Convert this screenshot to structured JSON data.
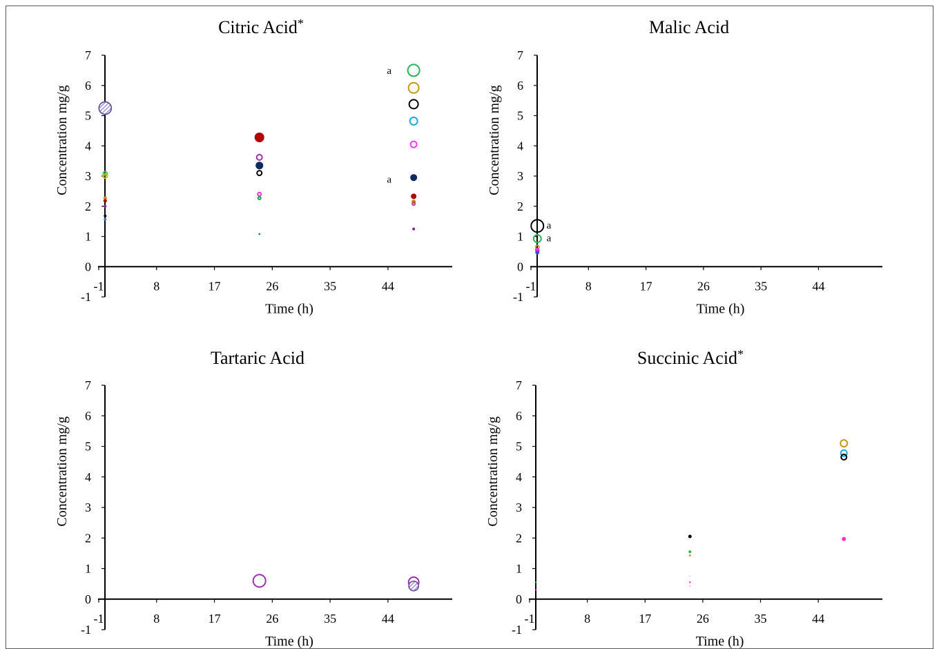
{
  "chart_data": [
    {
      "type": "scatter",
      "title": "Citric Acid",
      "title_mark": "*",
      "xlabel": "Time (h)",
      "ylabel": "Concentration mg/g",
      "xlim": [
        -1,
        54
      ],
      "ylim": [
        -1,
        7
      ],
      "x_ticks": [
        "-1",
        "8",
        "17",
        "26",
        "35",
        "44"
      ],
      "y_ticks": [
        "-1",
        "0",
        "1",
        "2",
        "3",
        "4",
        "5",
        "6",
        "7"
      ],
      "points": [
        {
          "x": 0,
          "y": 5.25,
          "size": 18,
          "color": "#8e7cc3",
          "style": "hatched"
        },
        {
          "x": 0,
          "y": 3.08,
          "size": 8,
          "color": "#2ecc71",
          "style": "ring"
        },
        {
          "x": 0,
          "y": 3.0,
          "size": 8,
          "color": "#d4b800",
          "style": "ring"
        },
        {
          "x": 0,
          "y": 2.27,
          "size": 5,
          "color": "#c8861a",
          "style": "filled"
        },
        {
          "x": 0,
          "y": 2.18,
          "size": 5,
          "color": "#a00000",
          "style": "filled"
        },
        {
          "x": 0,
          "y": 2.0,
          "size": 4,
          "color": "#7d2a8c",
          "style": "filled"
        },
        {
          "x": 0,
          "y": 1.68,
          "size": 4,
          "color": "#000000",
          "style": "filled"
        },
        {
          "x": 0,
          "y": 1.57,
          "size": 4,
          "color": "#3a7bd5",
          "style": "filled"
        },
        {
          "x": 24,
          "y": 4.28,
          "size": 14,
          "color": "#b00000",
          "style": "filled"
        },
        {
          "x": 24,
          "y": 3.62,
          "size": 10,
          "color": "#9b30b0",
          "style": "ring"
        },
        {
          "x": 24,
          "y": 3.35,
          "size": 11,
          "color": "#0d2a5c",
          "style": "filled"
        },
        {
          "x": 24,
          "y": 3.1,
          "size": 9,
          "color": "#000000",
          "style": "ring"
        },
        {
          "x": 24,
          "y": 2.4,
          "size": 7,
          "color": "#ff33cc",
          "style": "ring"
        },
        {
          "x": 24,
          "y": 2.27,
          "size": 6,
          "color": "#17a050",
          "style": "ring"
        },
        {
          "x": 24,
          "y": 1.08,
          "size": 3,
          "color": "#1a8fa0",
          "style": "filled"
        },
        {
          "x": 48,
          "y": 6.5,
          "size": 19,
          "color": "#22b55a",
          "style": "ring"
        },
        {
          "x": 48,
          "y": 5.92,
          "size": 17,
          "color": "#c8961a",
          "style": "ring"
        },
        {
          "x": 48,
          "y": 5.38,
          "size": 15,
          "color": "#000000",
          "style": "ring"
        },
        {
          "x": 48,
          "y": 4.82,
          "size": 13,
          "color": "#22a8e0",
          "style": "ring"
        },
        {
          "x": 48,
          "y": 4.05,
          "size": 11,
          "color": "#ff33ff",
          "style": "ring"
        },
        {
          "x": 48,
          "y": 2.95,
          "size": 10,
          "color": "#0d2a5c",
          "style": "filled"
        },
        {
          "x": 48,
          "y": 2.33,
          "size": 8,
          "color": "#b00000",
          "style": "filled"
        },
        {
          "x": 48,
          "y": 2.15,
          "size": 6,
          "color": "#b8860b",
          "style": "filled"
        },
        {
          "x": 48,
          "y": 2.08,
          "size": 6,
          "color": "#c04080",
          "style": "ring"
        },
        {
          "x": 48,
          "y": 1.25,
          "size": 4,
          "color": "#7d2a8c",
          "style": "filled"
        }
      ],
      "annotations": [
        {
          "text": "a",
          "x": 44.2,
          "y": 6.5
        },
        {
          "text": "a",
          "x": 44.2,
          "y": 2.9
        }
      ]
    },
    {
      "type": "scatter",
      "title": "Malic Acid",
      "title_mark": "",
      "xlabel": "Time (h)",
      "ylabel": "Concentration mg/g",
      "xlim": [
        -1,
        54
      ],
      "ylim": [
        -1,
        7
      ],
      "x_ticks": [
        "-1",
        "8",
        "17",
        "26",
        "35",
        "44"
      ],
      "y_ticks": [
        "-1",
        "0",
        "1",
        "2",
        "3",
        "4",
        "5",
        "6",
        "7"
      ],
      "points": [
        {
          "x": 0,
          "y": 1.35,
          "size": 20,
          "color": "#000000",
          "style": "ring"
        },
        {
          "x": 0,
          "y": 0.93,
          "size": 13,
          "color": "#22b55a",
          "style": "ring"
        },
        {
          "x": 0,
          "y": 0.65,
          "size": 7,
          "color": "#c8961a",
          "style": "ring"
        },
        {
          "x": 0,
          "y": 0.55,
          "size": 7,
          "color": "#ff33cc",
          "style": "filled"
        },
        {
          "x": 0,
          "y": 0.47,
          "size": 6,
          "color": "#3a4fd5",
          "style": "filled"
        }
      ],
      "annotations": [
        {
          "text": "a",
          "x": 1.8,
          "y": 1.38
        },
        {
          "text": "a",
          "x": 1.8,
          "y": 0.96
        }
      ]
    },
    {
      "type": "scatter",
      "title": "Tartaric Acid",
      "title_mark": "",
      "xlabel": "Time (h)",
      "ylabel": "Concentration mg/g",
      "xlim": [
        -1,
        54
      ],
      "ylim": [
        -1,
        7
      ],
      "x_ticks": [
        "-1",
        "8",
        "17",
        "26",
        "35",
        "44"
      ],
      "y_ticks": [
        "-1",
        "0",
        "1",
        "2",
        "3",
        "4",
        "5",
        "6",
        "7"
      ],
      "points": [
        {
          "x": 24,
          "y": 0.6,
          "size": 20,
          "color": "#9b30b0",
          "style": "ring"
        },
        {
          "x": 48,
          "y": 0.55,
          "size": 17,
          "color": "#9b30b0",
          "style": "ring"
        },
        {
          "x": 48,
          "y": 0.43,
          "size": 14,
          "color": "#8e7cc3",
          "style": "hatched"
        }
      ],
      "annotations": []
    },
    {
      "type": "scatter",
      "title": "Succinic Acid",
      "title_mark": "*",
      "xlabel": "Time (h)",
      "ylabel": "Concentration mg/g",
      "xlim": [
        -1,
        54
      ],
      "ylim": [
        -1,
        7
      ],
      "x_ticks": [
        "-1",
        "8",
        "17",
        "26",
        "35",
        "44"
      ],
      "y_ticks": [
        "-1",
        "0",
        "1",
        "2",
        "3",
        "4",
        "5",
        "6",
        "7"
      ],
      "points": [
        {
          "x": 0,
          "y": 0.55,
          "size": 2,
          "color": "#2ecc71",
          "style": "filled"
        },
        {
          "x": 0,
          "y": 0.3,
          "size": 2,
          "color": "#ff33cc",
          "style": "filled"
        },
        {
          "x": 24,
          "y": 2.05,
          "size": 5,
          "color": "#000000",
          "style": "filled"
        },
        {
          "x": 24,
          "y": 1.55,
          "size": 4,
          "color": "#22b55a",
          "style": "filled"
        },
        {
          "x": 24,
          "y": 1.43,
          "size": 3,
          "color": "#c8961a",
          "style": "filled"
        },
        {
          "x": 24,
          "y": 0.75,
          "size": 2,
          "color": "#ffb0e0",
          "style": "filled"
        },
        {
          "x": 24,
          "y": 0.55,
          "size": 3,
          "color": "#ff66cc",
          "style": "filled"
        },
        {
          "x": 24,
          "y": 0.43,
          "size": 2,
          "color": "#ff99dd",
          "style": "filled"
        },
        {
          "x": 48,
          "y": 5.1,
          "size": 12,
          "color": "#c8961a",
          "style": "ring"
        },
        {
          "x": 48,
          "y": 4.78,
          "size": 11,
          "color": "#22a8e0",
          "style": "ring"
        },
        {
          "x": 48,
          "y": 4.65,
          "size": 10,
          "color": "#000000",
          "style": "ring"
        },
        {
          "x": 48,
          "y": 1.97,
          "size": 6,
          "color": "#ff33cc",
          "style": "filled"
        }
      ],
      "annotations": []
    }
  ]
}
